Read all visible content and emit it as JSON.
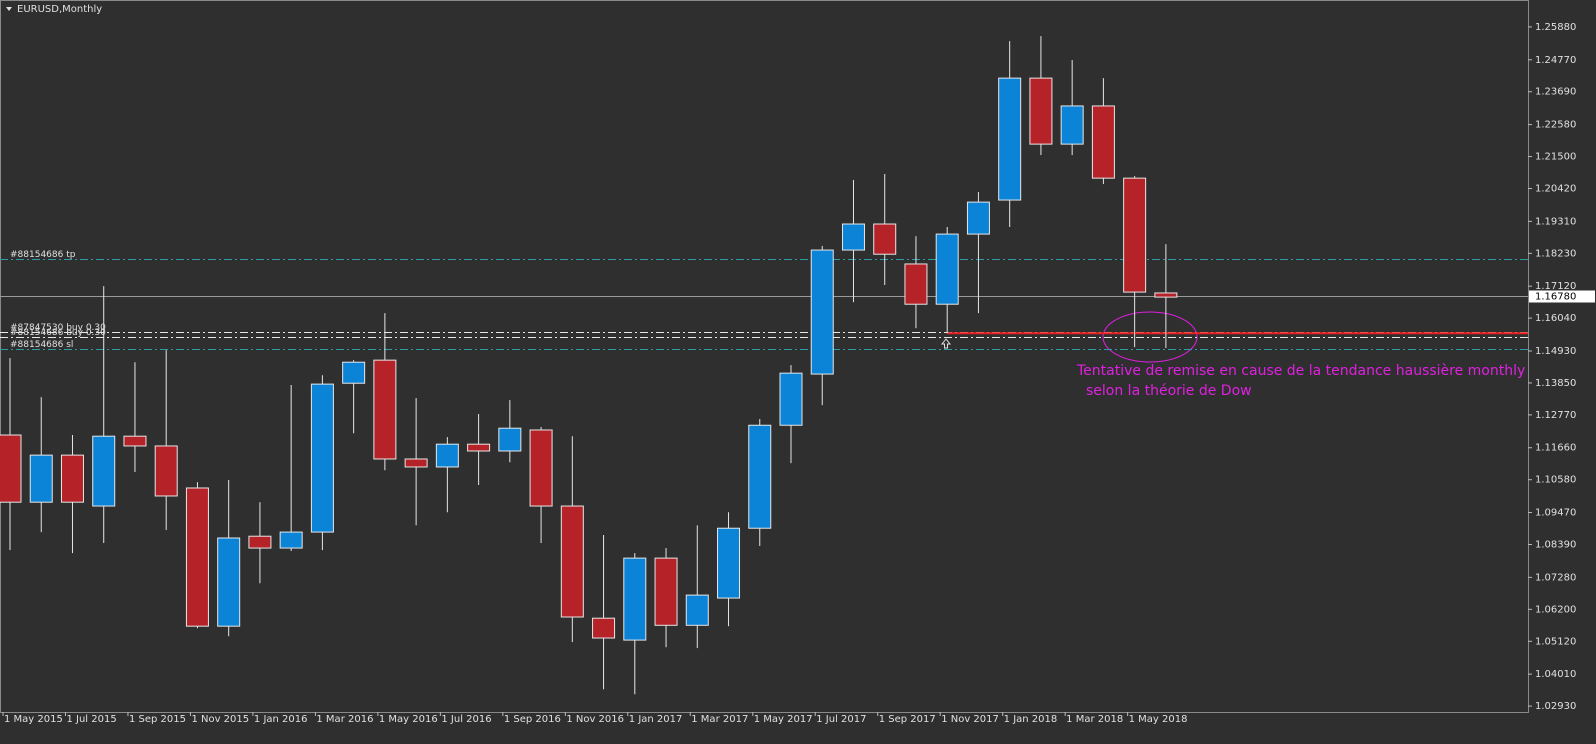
{
  "chart_data": {
    "type": "candlestick",
    "title": "EURUSD,Monthly",
    "categories": [
      "1 May 2015",
      null,
      "1 Jul 2015",
      null,
      "1 Sep 2015",
      null,
      "1 Nov 2015",
      null,
      "1 Jan 2016",
      null,
      "1 Mar 2016",
      null,
      "1 May 2016",
      null,
      "1 Jul 2016",
      null,
      "1 Sep 2016",
      null,
      "1 Nov 2016",
      null,
      "1 Jan 2017",
      null,
      "1 Mar 2017",
      null,
      "1 May 2017",
      null,
      "1 Jul 2017",
      null,
      "1 Sep 2017",
      null,
      "1 Nov 2017",
      null,
      "1 Jan 2018",
      null,
      "1 Mar 2018",
      null,
      "1 May 2018",
      null
    ],
    "open": [
      1.1209,
      1.0982,
      1.1141,
      1.0969,
      1.1205,
      1.1172,
      1.103,
      1.0563,
      1.0867,
      1.0827,
      1.0881,
      1.1384,
      1.1462,
      1.1128,
      1.1101,
      1.1178,
      1.1155,
      1.1226,
      1.0969,
      1.059,
      1.0516,
      1.0793,
      1.0566,
      1.0658,
      1.0894,
      1.1242,
      1.1415,
      1.1834,
      1.1922,
      1.1787,
      1.1651,
      1.1888,
      1.2003,
      1.2415,
      1.2192,
      1.2321,
      1.2077,
      1.1689
    ],
    "high": [
      1.1469,
      1.1337,
      1.1209,
      1.1712,
      1.1455,
      1.1496,
      1.105,
      1.1057,
      1.0982,
      1.1378,
      1.1411,
      1.1462,
      1.1621,
      1.1334,
      1.1202,
      1.128,
      1.1327,
      1.1236,
      1.1205,
      1.0871,
      1.081,
      1.0827,
      1.0904,
      1.0948,
      1.1263,
      1.1445,
      1.1848,
      1.2071,
      1.2091,
      1.1881,
      1.1912,
      1.203,
      1.254,
      1.2557,
      1.2476,
      1.2415,
      1.2084,
      1.1854
    ],
    "low": [
      1.082,
      1.0881,
      1.081,
      1.0844,
      1.1084,
      1.0888,
      1.0556,
      1.0529,
      1.0708,
      1.0817,
      1.082,
      1.1215,
      1.109,
      1.0904,
      1.0948,
      1.104,
      1.1117,
      1.0844,
      1.0509,
      1.035,
      1.0333,
      1.0492,
      1.0489,
      1.0563,
      1.0834,
      1.1114,
      1.131,
      1.1658,
      1.1716,
      1.157,
      1.1553,
      1.1621,
      1.1912,
      1.2155,
      1.2155,
      1.2057,
      1.1506,
      1.1503
    ],
    "close": [
      1.0982,
      1.1141,
      1.0982,
      1.1205,
      1.1172,
      1.1003,
      1.0563,
      1.0861,
      1.0827,
      1.0881,
      1.1381,
      1.1455,
      1.1128,
      1.1101,
      1.1178,
      1.1155,
      1.1232,
      1.0969,
      1.0594,
      1.0523,
      1.0793,
      1.0566,
      1.0668,
      1.0894,
      1.1242,
      1.1418,
      1.1834,
      1.1922,
      1.182,
      1.1651,
      1.1888,
      1.1996,
      1.2415,
      1.2192,
      1.2321,
      1.2077,
      1.1692,
      1.1675
    ],
    "up_color": "#0b84d8",
    "down_color": "#b52328",
    "ylim": [
      1.0273,
      1.2679
    ],
    "yticks": [
      {
        "value": 1.2588,
        "label": "1.25880"
      },
      {
        "value": 1.2477,
        "label": "1.24770"
      },
      {
        "value": 1.2369,
        "label": "1.23690"
      },
      {
        "value": 1.2258,
        "label": "1.22580"
      },
      {
        "value": 1.215,
        "label": "1.21500"
      },
      {
        "value": 1.2042,
        "label": "1.20420"
      },
      {
        "value": 1.1931,
        "label": "1.19310"
      },
      {
        "value": 1.1823,
        "label": "1.18230"
      },
      {
        "value": 1.1712,
        "label": "1.17120"
      },
      {
        "value": 1.1604,
        "label": "1.16040"
      },
      {
        "value": 1.1493,
        "label": "1.14930"
      },
      {
        "value": 1.1385,
        "label": "1.13850"
      },
      {
        "value": 1.1277,
        "label": "1.12770"
      },
      {
        "value": 1.1166,
        "label": "1.11660"
      },
      {
        "value": 1.1058,
        "label": "1.10580"
      },
      {
        "value": 1.0947,
        "label": "1.09470"
      },
      {
        "value": 1.0839,
        "label": "1.08390"
      },
      {
        "value": 1.0728,
        "label": "1.07280"
      },
      {
        "value": 1.062,
        "label": "1.06200"
      },
      {
        "value": 1.0512,
        "label": "1.05120"
      },
      {
        "value": 1.0401,
        "label": "1.04010"
      },
      {
        "value": 1.0293,
        "label": "1.02930"
      }
    ],
    "current_price": {
      "value": 1.1678,
      "label": "1.16780"
    },
    "levels": [
      {
        "label": "#88154686 tp",
        "value": 1.1803,
        "color": "#2a9ea6"
      },
      {
        "label": "#87847530 buy 0.30",
        "value": 1.1557,
        "color": "#e8e8e8"
      },
      {
        "label": "#88154686 buy 0.30",
        "value": 1.154,
        "color": "#e8e8e8"
      },
      {
        "label": "#88154686 sl",
        "value": 1.1499,
        "color": "#2a9ea6"
      }
    ],
    "trend_line": {
      "value": 1.1553,
      "color": "#e82020",
      "start": "1 Nov 2017"
    },
    "annotation": [
      "Tentative de remise en cause de la tendance haussière monthly",
      "selon la théorie de Dow"
    ],
    "annotation_color": "#e020e0"
  }
}
